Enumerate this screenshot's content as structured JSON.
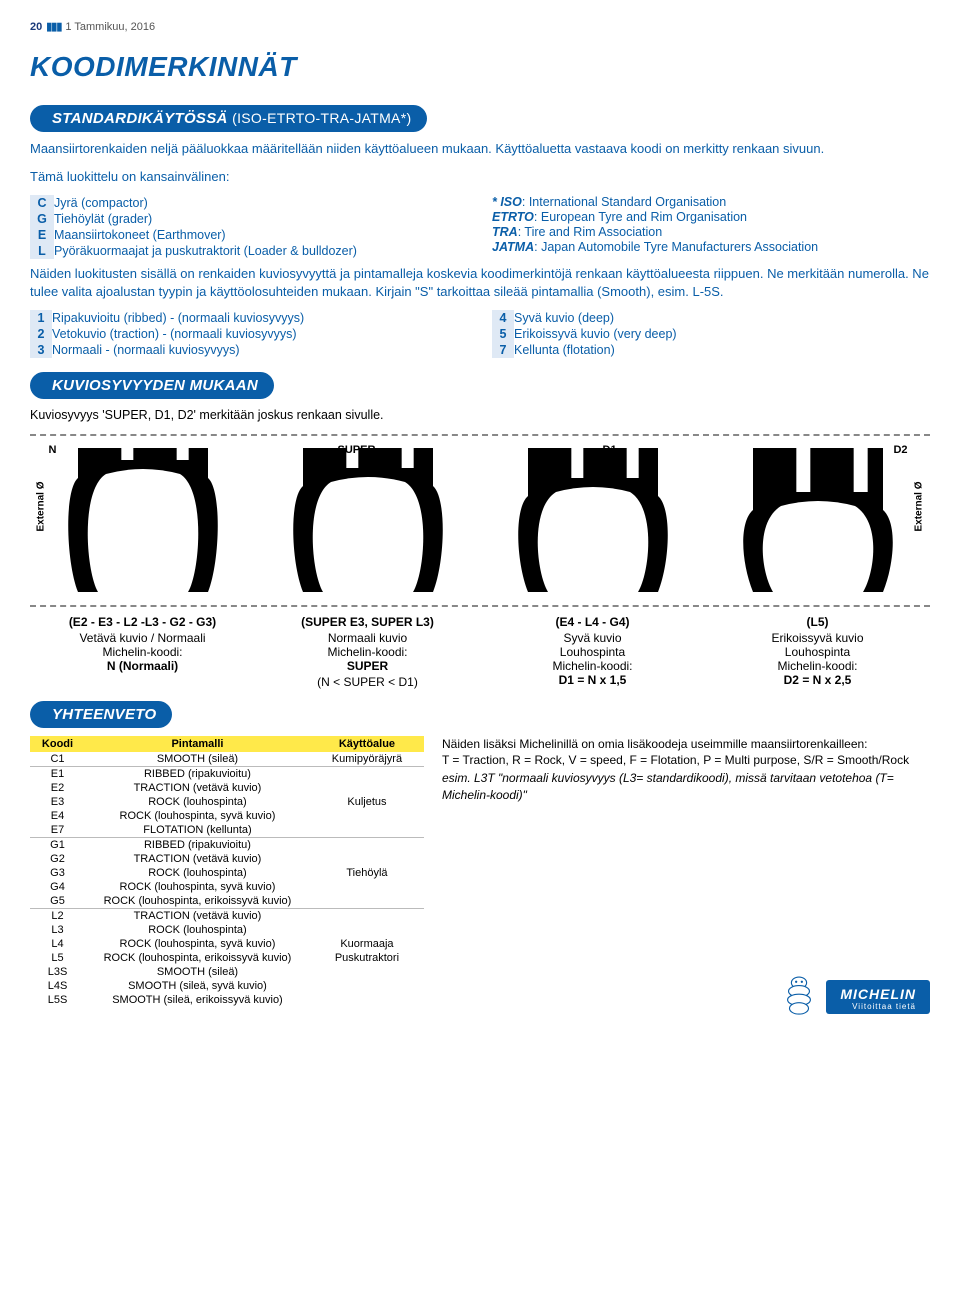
{
  "header": {
    "pageNo": "20",
    "issue": "1 Tammikuu, 2016"
  },
  "mainTitle": "KOODIMERKINNÄT",
  "section1": {
    "pillMain": "STANDARDIKÄYTÖSSÄ",
    "pillParen": "(ISO-ETRTO-TRA-JATMA*)",
    "intro": "Maansiirtorenkaiden neljä pääluokkaa määritellään niiden käyttöalueen mukaan. Käyttöaluetta vastaava koodi on merkitty renkaan sivuun.",
    "classifIntro": "Tämä luokittelu on kansainvälinen:",
    "leftCodes": [
      {
        "c": "C",
        "t": "Jyrä (compactor)"
      },
      {
        "c": "G",
        "t": "Tiehöylät (grader)"
      },
      {
        "c": "E",
        "t": "Maansiirtokoneet (Earthmover)"
      },
      {
        "c": "L",
        "t": "Pyöräkuormaajat ja puskutraktorit (Loader & bulldozer)"
      }
    ],
    "rightDefs": [
      {
        "a": "* ISO",
        "t": ": International Standard Organisation"
      },
      {
        "a": "ETRTO",
        "t": ": European Tyre and Rim Organisation"
      },
      {
        "a": "TRA",
        "t": ": Tire and Rim Association"
      },
      {
        "a": "JATMA",
        "t": ": Japan Automobile Tyre Manufacturers Association"
      }
    ],
    "para2": "Näiden luokitusten sisällä on renkaiden kuviosyvyyttä ja pintamalleja koskevia koodimerkintöjä renkaan käyttöalueesta riippuen. Ne merkitään numerolla. Ne tulee valita ajoalustan tyypin ja käyttöolosuhteiden mukaan. Kirjain \"S\" tarkoittaa sileää pintamallia (Smooth), esim. L-5S.",
    "numLeft": [
      {
        "c": "1",
        "t": "Ripakuvioitu (ribbed) - (normaali kuviosyvyys)"
      },
      {
        "c": "2",
        "t": "Vetokuvio (traction) - (normaali kuviosyvyys)"
      },
      {
        "c": "3",
        "t": "Normaali - (normaali kuviosyvyys)"
      }
    ],
    "numRight": [
      {
        "c": "4",
        "t": "Syvä kuvio (deep)"
      },
      {
        "c": "5",
        "t": "Erikoissyvä kuvio (very deep)"
      },
      {
        "c": "7",
        "t": "Kellunta (flotation)"
      }
    ]
  },
  "section2": {
    "pill": "KUVIOSYVYYDEN MUKAAN",
    "intro": "Kuviosyvyys 'SUPER, D1, D2' merkitään joskus renkaan sivulle.",
    "labels": {
      "n": "N",
      "super": "SUPER",
      "d1": "D1",
      "d2": "D2",
      "ext": "External Ø"
    },
    "profiles": {
      "tread_depths": [
        12,
        20,
        30,
        44
      ],
      "groove_widths": [
        12,
        12,
        12,
        14
      ],
      "stroke": "#000000",
      "fill_inside": "#ffffff",
      "background": "#ffffff"
    },
    "cols": [
      {
        "hd": "(E2 - E3 - L2 -L3 - G2 - G3)",
        "l1": "Vetävä kuvio / Normaali",
        "l2": "Michelin-koodi:",
        "l3": "N (Normaali)",
        "l4": ""
      },
      {
        "hd": "(SUPER E3, SUPER L3)",
        "l1": "Normaali kuvio",
        "l2": "Michelin-koodi:",
        "l3": "SUPER",
        "l4": "(N < SUPER < D1)"
      },
      {
        "hd": "(E4 - L4 - G4)",
        "l1": "Syvä kuvio",
        "l2": "Louhospinta",
        "l3": "Michelin-koodi:",
        "l4": "D1 = N x 1,5"
      },
      {
        "hd": "(L5)",
        "l1": "Erikoissyvä kuvio",
        "l2": "Louhospinta",
        "l3": "Michelin-koodi:",
        "l4": "D2 = N x 2,5"
      }
    ]
  },
  "section3": {
    "pill": "YHTEENVETO",
    "columns": [
      "Koodi",
      "Pintamalli",
      "Käyttöalue"
    ],
    "colwidths": [
      "56px",
      "260px",
      "120px"
    ],
    "rows": [
      {
        "c": "C1",
        "p": "SMOOTH (sileä)",
        "a": "Kumipyöräjyrä",
        "sep": true
      },
      {
        "c": "E1",
        "p": "RIBBED (ripakuvioitu)",
        "a": ""
      },
      {
        "c": "E2",
        "p": "TRACTION (vetävä kuvio)",
        "a": ""
      },
      {
        "c": "E3",
        "p": "ROCK (louhospinta)",
        "a": "Kuljetus"
      },
      {
        "c": "E4",
        "p": "ROCK (louhospinta, syvä kuvio)",
        "a": ""
      },
      {
        "c": "E7",
        "p": "FLOTATION (kellunta)",
        "a": "",
        "sep": true
      },
      {
        "c": "G1",
        "p": "RIBBED (ripakuvioitu)",
        "a": ""
      },
      {
        "c": "G2",
        "p": "TRACTION (vetävä kuvio)",
        "a": ""
      },
      {
        "c": "G3",
        "p": "ROCK (louhospinta)",
        "a": "Tiehöylä"
      },
      {
        "c": "G4",
        "p": "ROCK (louhospinta, syvä kuvio)",
        "a": ""
      },
      {
        "c": "G5",
        "p": "ROCK (louhospinta, erikoissyvä kuvio)",
        "a": "",
        "sep": true
      },
      {
        "c": "L2",
        "p": "TRACTION (vetävä kuvio)",
        "a": ""
      },
      {
        "c": "L3",
        "p": "ROCK (louhospinta)",
        "a": ""
      },
      {
        "c": "L4",
        "p": "ROCK (louhospinta, syvä kuvio)",
        "a": "Kuormaaja"
      },
      {
        "c": "L5",
        "p": "ROCK (louhospinta, erikoissyvä kuvio)",
        "a": "Puskutraktori"
      },
      {
        "c": "L3S",
        "p": "SMOOTH (sileä)",
        "a": ""
      },
      {
        "c": "L4S",
        "p": "SMOOTH (sileä, syvä kuvio)",
        "a": ""
      },
      {
        "c": "L5S",
        "p": "SMOOTH (sileä, erikoissyvä kuvio)",
        "a": ""
      }
    ],
    "sidetext": "Näiden lisäksi Michelinillä on omia lisäkoodeja useimmille maansiirtorenkailleen:\nT = Traction, R = Rock, V = speed, F = Flotation, P = Multi purpose, S/R = Smooth/Rock",
    "sideitalic": "esim. L3T \"normaali kuviosyvyys (L3= standardikoodi), missä tarvitaan vetotehoa (T= Michelin-koodi)\""
  },
  "brand": {
    "logo": "MICHELIN",
    "tagline": "Viitoittaa tietä"
  },
  "colors": {
    "blue": "#0a5ea8",
    "yellow": "#ffe94a",
    "lightblue": "#dfe9f5"
  }
}
